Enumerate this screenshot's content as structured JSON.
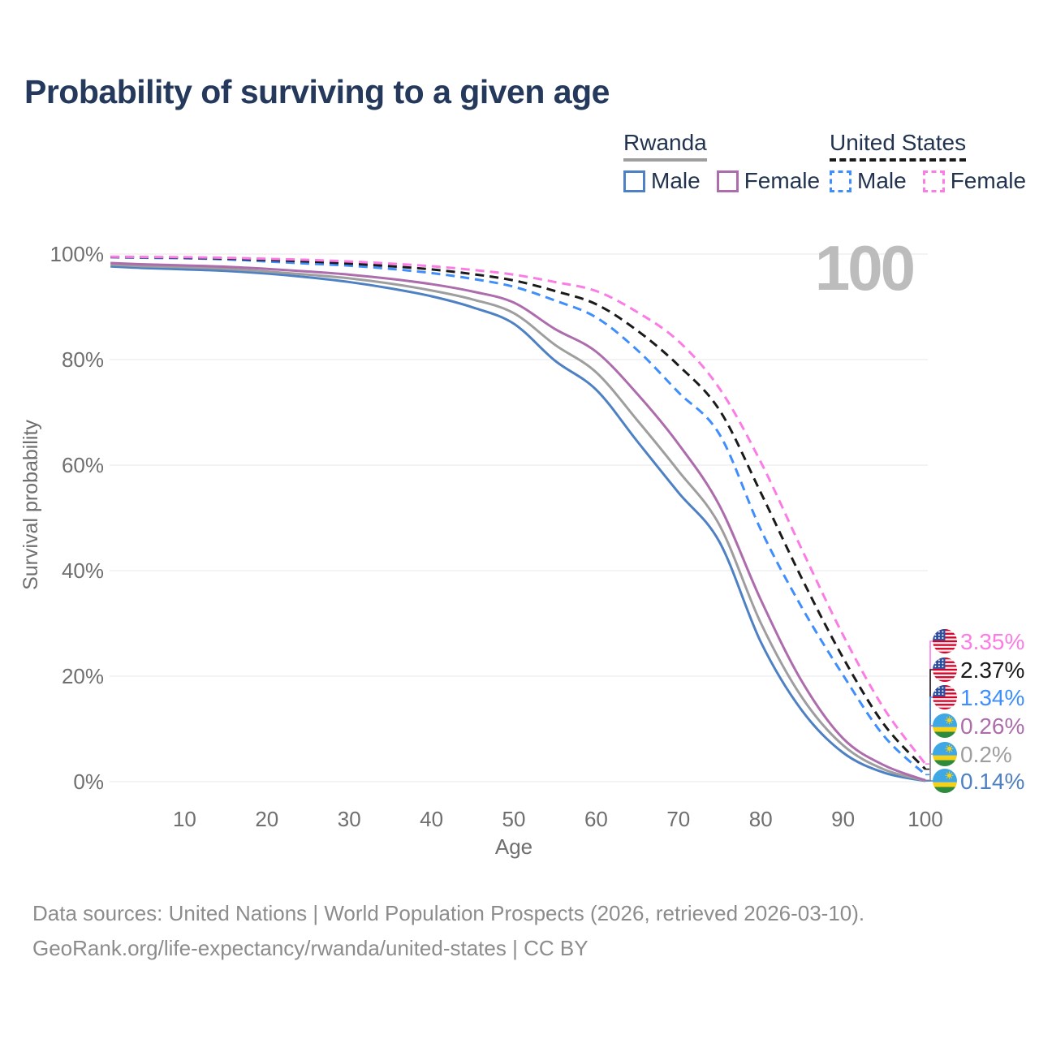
{
  "title": "Probability of surviving to a given age",
  "legend": {
    "groups": [
      {
        "name": "Rwanda",
        "line_style": "solid",
        "underline_color": "#9e9e9e",
        "items": [
          {
            "label": "Male",
            "color": "#4e80c4",
            "dashed": false
          },
          {
            "label": "Female",
            "color": "#ad6cab",
            "dashed": false
          }
        ]
      },
      {
        "name": "United States",
        "line_style": "dashed",
        "underline_color": "#1a1a1a",
        "items": [
          {
            "label": "Male",
            "color": "#3f8efc",
            "dashed": true
          },
          {
            "label": "Female",
            "color": "#fb7ce4",
            "dashed": true
          }
        ]
      }
    ]
  },
  "footer": {
    "line1": "Data sources: United Nations | World Population Prospects (2026, retrieved 2026-03-10).",
    "line2": "GeoRank.org/life-expectancy/rwanda/united-states | CC BY"
  },
  "chart_data": {
    "type": "line",
    "title": "Probability of surviving to a given age",
    "xlabel": "Age",
    "ylabel": "Survival probability",
    "xlim": [
      1,
      100
    ],
    "ylim": [
      0,
      100
    ],
    "x_ticks": [
      10,
      20,
      30,
      40,
      50,
      60,
      70,
      80,
      90,
      100
    ],
    "y_ticks": [
      0,
      20,
      40,
      60,
      80,
      100
    ],
    "y_tick_format": "percent",
    "grid": "horizontal",
    "hover_age_watermark": "100",
    "watermark_color": "#bcbcbc",
    "ages": [
      1,
      5,
      10,
      15,
      20,
      25,
      30,
      35,
      40,
      45,
      50,
      55,
      60,
      65,
      70,
      75,
      80,
      85,
      90,
      95,
      100
    ],
    "series": [
      {
        "name": "United States Female",
        "flag": "us",
        "color": "#fb7ce4",
        "dashed": true,
        "end_label": "3.35%",
        "values": [
          99.5,
          99.45,
          99.4,
          99.3,
          99.1,
          98.9,
          98.6,
          98.2,
          97.7,
          97.0,
          96.1,
          94.7,
          93.0,
          89.0,
          83.5,
          74.5,
          60.6,
          44.0,
          27.8,
          13.8,
          3.35
        ]
      },
      {
        "name": "United States",
        "flag": "us",
        "color": "#1a1a1a",
        "dashed": true,
        "end_label": "2.37%",
        "values": [
          99.45,
          99.4,
          99.3,
          99.15,
          98.9,
          98.6,
          98.2,
          97.7,
          97.1,
          96.2,
          95.0,
          93.0,
          90.5,
          85.5,
          78.9,
          70.4,
          54.8,
          38.5,
          23.5,
          10.8,
          2.37
        ]
      },
      {
        "name": "United States Male",
        "flag": "us",
        "color": "#3f8efc",
        "dashed": true,
        "end_label": "1.34%",
        "values": [
          99.4,
          99.3,
          99.2,
          99.0,
          98.6,
          98.2,
          97.8,
          97.2,
          96.4,
          95.3,
          93.8,
          91.2,
          88.0,
          81.8,
          73.8,
          65.8,
          47.8,
          33.0,
          20.2,
          8.6,
          1.34
        ]
      },
      {
        "name": "Rwanda Female",
        "flag": "rw",
        "color": "#ad6cab",
        "dashed": false,
        "end_label": "0.26%",
        "values": [
          98.3,
          98.05,
          97.85,
          97.6,
          97.2,
          96.7,
          96.1,
          95.3,
          94.3,
          92.9,
          90.8,
          85.8,
          81.5,
          73.5,
          64.0,
          52.3,
          34.5,
          19.0,
          8.2,
          3.1,
          0.26
        ]
      },
      {
        "name": "Rwanda",
        "flag": "rw",
        "color": "#9e9e9e",
        "dashed": false,
        "end_label": "0.2%",
        "values": [
          98.0,
          97.7,
          97.5,
          97.2,
          96.7,
          96.1,
          95.4,
          94.4,
          93.1,
          91.4,
          88.8,
          82.8,
          77.6,
          68.5,
          58.9,
          48.6,
          30.1,
          16.0,
          6.9,
          2.3,
          0.2
        ]
      },
      {
        "name": "Rwanda Male",
        "flag": "rw",
        "color": "#4e80c4",
        "dashed": false,
        "end_label": "0.14%",
        "values": [
          97.65,
          97.35,
          97.1,
          96.8,
          96.3,
          95.6,
          94.7,
          93.5,
          92.0,
          89.9,
          86.8,
          79.8,
          74.3,
          64.5,
          54.8,
          45.4,
          26.5,
          13.5,
          5.5,
          1.7,
          0.14
        ]
      }
    ]
  }
}
